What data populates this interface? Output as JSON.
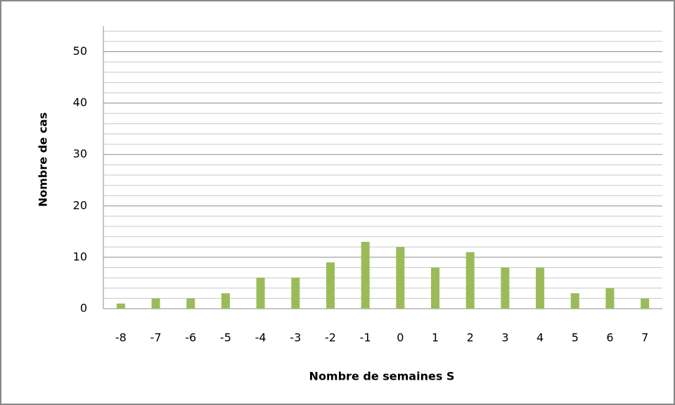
{
  "chart_data": {
    "type": "bar",
    "x_label": "Nombre de semaines S",
    "y_label": "Nombre de cas",
    "categories": [
      "-8",
      "-7",
      "-6",
      "-5",
      "-4",
      "-3",
      "-2",
      "-1",
      "0",
      "1",
      "2",
      "3",
      "4",
      "5",
      "6",
      "7"
    ],
    "values": [
      1,
      2,
      2,
      3,
      6,
      6,
      9,
      13,
      12,
      8,
      11,
      8,
      8,
      3,
      4,
      2
    ],
    "color": "#9bbb59",
    "ylim": [
      0,
      55
    ],
    "yticks": [
      0,
      10,
      20,
      30,
      40,
      50
    ],
    "minor_yticks": [
      2,
      4,
      6,
      8,
      12,
      14,
      16,
      18,
      22,
      24,
      26,
      28,
      32,
      34,
      36,
      38,
      42,
      44,
      46,
      48,
      52,
      54
    ],
    "grid": true
  }
}
